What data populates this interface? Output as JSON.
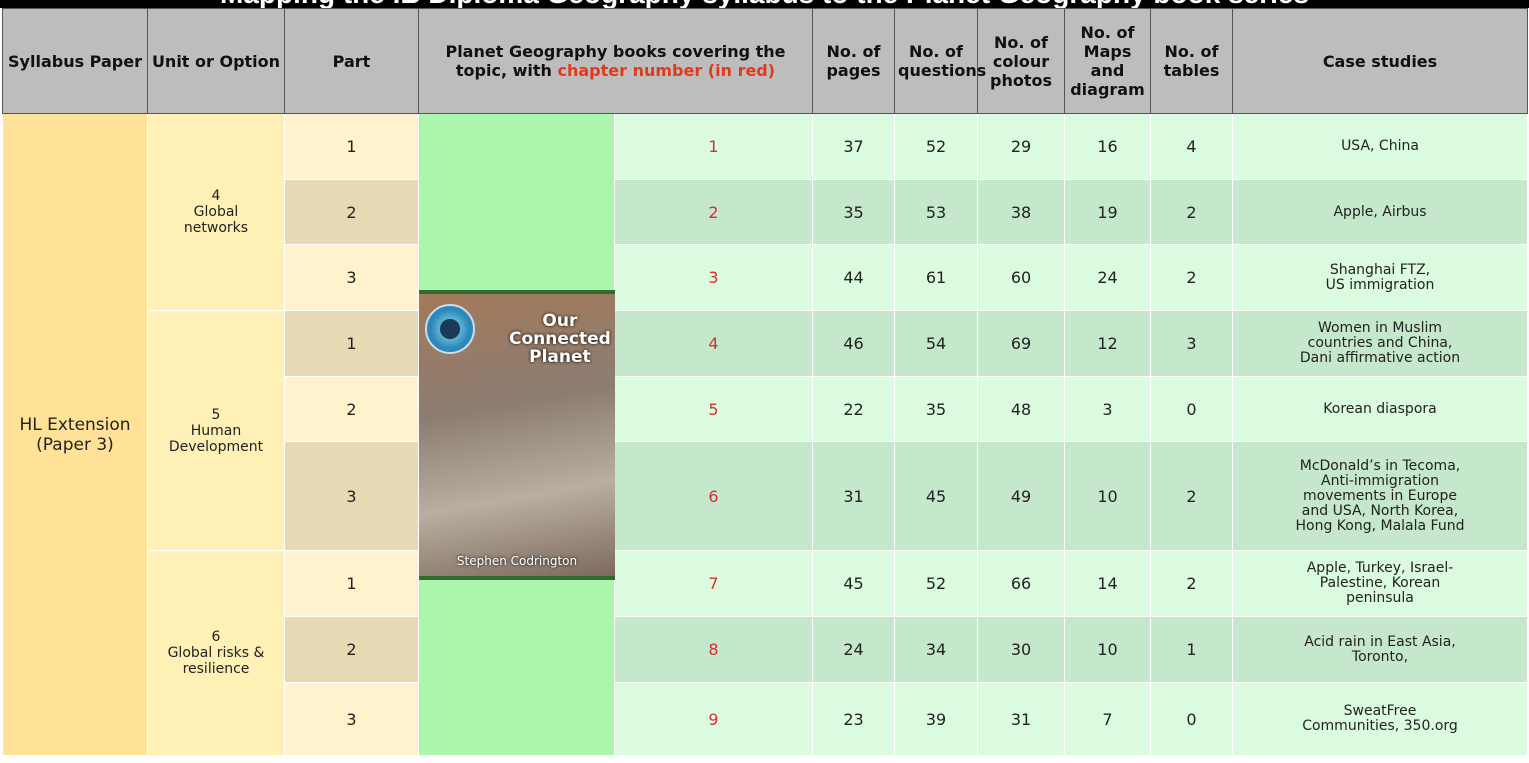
{
  "title": "Mapping the IB Diploma Geography syllabus to the Planet Geography book series",
  "table": {
    "header": [
      "Syllabus Paper",
      "Unit or Option",
      "Part",
      "No. of pages",
      "No. of questions",
      "No. of colour photos",
      "No. of Maps and diagram",
      "No. of tables",
      "Case studies"
    ],
    "book_header": {
      "text": "Planet Geography   books covering the topic, with ",
      "red": "chapter number (in red)"
    },
    "paper": "HL Extension\n(Paper 3)",
    "book": {
      "cover_title": "Our\nConnected\nPlanet",
      "cover_author": "Stephen Codrington"
    },
    "units": [
      {
        "number": "4",
        "name": "Global\nnetworks",
        "parts": [
          {
            "part": "1",
            "chapter": "1",
            "pages": 37,
            "questions": 52,
            "photos": 29,
            "maps": 16,
            "tables": 4,
            "case_studies": "USA, China"
          },
          {
            "part": "2",
            "chapter": "2",
            "pages": 35,
            "questions": 53,
            "photos": 38,
            "maps": 19,
            "tables": 2,
            "case_studies": "Apple, Airbus"
          },
          {
            "part": "3",
            "chapter": "3",
            "pages": 44,
            "questions": 61,
            "photos": 60,
            "maps": 24,
            "tables": 2,
            "case_studies": "Shanghai FTZ,\nUS immigration"
          }
        ]
      },
      {
        "number": "5",
        "name": "Human\nDevelopment",
        "parts": [
          {
            "part": "1",
            "chapter": "4",
            "pages": 46,
            "questions": 54,
            "photos": 69,
            "maps": 12,
            "tables": 3,
            "case_studies": "Women in Muslim\ncountries and China,\nDani affirmative action"
          },
          {
            "part": "2",
            "chapter": "5",
            "pages": 22,
            "questions": 35,
            "photos": 48,
            "maps": 3,
            "tables": 0,
            "case_studies": "Korean diaspora"
          },
          {
            "part": "3",
            "chapter": "6",
            "pages": 31,
            "questions": 45,
            "photos": 49,
            "maps": 10,
            "tables": 2,
            "case_studies": "McDonald’s in Tecoma,\nAnti-immigration\nmovements in Europe\nand USA, North Korea,\nHong Kong, Malala Fund"
          }
        ]
      },
      {
        "number": "6",
        "name": "Global risks &\nresilience",
        "parts": [
          {
            "part": "1",
            "chapter": "7",
            "pages": 45,
            "questions": 52,
            "photos": 66,
            "maps": 14,
            "tables": 2,
            "case_studies": "Apple, Turkey, Israel-\nPalestine, Korean\npeninsula"
          },
          {
            "part": "2",
            "chapter": "8",
            "pages": 24,
            "questions": 34,
            "photos": 30,
            "maps": 10,
            "tables": 1,
            "case_studies": "Acid rain in East Asia,\nToronto,"
          },
          {
            "part": "3",
            "chapter": "9",
            "pages": 23,
            "questions": 39,
            "photos": 31,
            "maps": 7,
            "tables": 0,
            "case_studies": "SweatFree\nCommunities, 350.org"
          }
        ]
      }
    ]
  }
}
